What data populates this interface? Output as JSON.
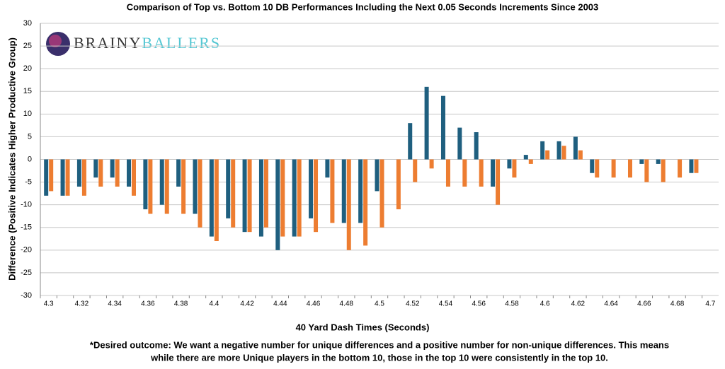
{
  "logo": {
    "part1": "BRAINY",
    "part2": "BALLERS"
  },
  "chart_data": {
    "type": "bar",
    "title": "Comparison of Top vs. Bottom 10 DB Performances Including the Next 0.05 Seconds Increments Since 2003",
    "x_label": "40 Yard Dash Times (Seconds)",
    "y_label": "Difference (Positive Indicates Higher Productive Group)",
    "footnote": [
      "*Desired outcome: We want a negative number for unique differences and a positive number for non-unique differences. This means",
      "while there are more Unique players in the bottom 10, those in the top 10 were consistently in the top 10."
    ],
    "categories": [
      "4.3",
      null,
      "4.32",
      null,
      "4.34",
      null,
      "4.36",
      null,
      "4.38",
      null,
      "4.4",
      null,
      "4.42",
      null,
      "4.44",
      null,
      "4.46",
      null,
      "4.48",
      null,
      "4.5",
      null,
      "4.52",
      null,
      "4.54",
      null,
      "4.56",
      null,
      "4.58",
      null,
      "4.6",
      null,
      "4.62",
      null,
      "4.64",
      null,
      "4.66",
      null,
      "4.68",
      null,
      "4.7"
    ],
    "series": [
      {
        "color": "#1f5f7f",
        "values": [
          -8,
          -8,
          -6,
          -4,
          -4,
          -6,
          -11,
          -10,
          -6,
          -12,
          -17,
          -13,
          -16,
          -17,
          -20,
          -17,
          -13,
          -4,
          -14,
          -14,
          -7,
          0,
          8,
          16,
          14,
          7,
          6,
          -6,
          -2,
          1,
          4,
          4,
          5,
          -3,
          0,
          0,
          -1,
          -1,
          0,
          -3,
          null
        ]
      },
      {
        "color": "#ed7d31",
        "values": [
          -7,
          -8,
          -8,
          -6,
          -6,
          -8,
          -12,
          -12,
          -12,
          -15,
          -18,
          -15,
          -16,
          -15,
          -17,
          -17,
          -16,
          -14,
          -20,
          -19,
          -15,
          -11,
          -5,
          -2,
          -6,
          -6,
          -6,
          -10,
          -4,
          -1,
          2,
          3,
          2,
          -4,
          -4,
          -4,
          -5,
          -5,
          -4,
          -3,
          null
        ]
      }
    ],
    "ylim": [
      -30,
      30
    ],
    "yticks": [
      -30,
      -25,
      -20,
      -15,
      -10,
      -5,
      0,
      5,
      10,
      15,
      20,
      25,
      30
    ],
    "grid": true
  }
}
